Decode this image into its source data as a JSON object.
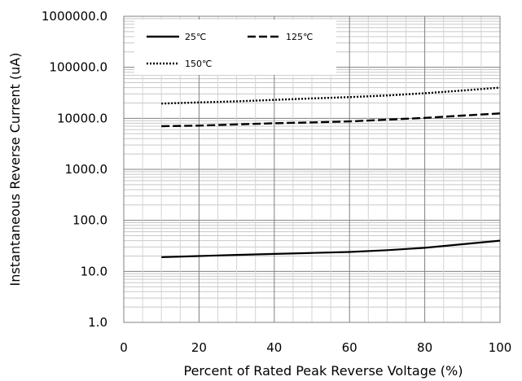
{
  "chart_data": {
    "type": "line",
    "title": "",
    "xlabel": "Percent of  Rated Peak Reverse Voltage (%)",
    "ylabel": "Instantaneous Reverse Current (uA)",
    "x_scale": "linear",
    "y_scale": "log",
    "xlim": [
      0,
      100
    ],
    "ylim": [
      1.0,
      1000000.0
    ],
    "x_ticks": [
      0,
      20,
      40,
      60,
      80,
      100
    ],
    "x_tick_labels": [
      "0",
      "20",
      "40",
      "60",
      "80",
      "100"
    ],
    "y_ticks": [
      1.0,
      10.0,
      100.0,
      1000.0,
      10000.0,
      100000.0,
      1000000.0
    ],
    "y_tick_labels": [
      "1.0",
      "10.0",
      "100.0",
      "1000.0",
      "10000.0",
      "100000.0",
      "1000000.0"
    ],
    "grid": "on (major and minor)",
    "legend_position": "top-left",
    "series": [
      {
        "name": "25℃",
        "style": "solid",
        "color": "#000000",
        "x": [
          10,
          20,
          30,
          40,
          50,
          60,
          70,
          80,
          90,
          100
        ],
        "y": [
          19,
          20,
          21,
          22,
          23,
          24,
          26,
          29,
          34,
          40
        ]
      },
      {
        "name": "125℃",
        "style": "dashed",
        "color": "#000000",
        "x": [
          10,
          20,
          30,
          40,
          50,
          60,
          70,
          80,
          90,
          100
        ],
        "y": [
          7000,
          7200,
          7600,
          8000,
          8300,
          8700,
          9400,
          10200,
          11300,
          12500
        ]
      },
      {
        "name": "150℃",
        "style": "dotted",
        "color": "#000000",
        "x": [
          10,
          20,
          30,
          40,
          50,
          60,
          70,
          80,
          90,
          100
        ],
        "y": [
          19500,
          20500,
          21500,
          23000,
          24500,
          26000,
          28000,
          31000,
          35000,
          40000
        ]
      }
    ]
  }
}
